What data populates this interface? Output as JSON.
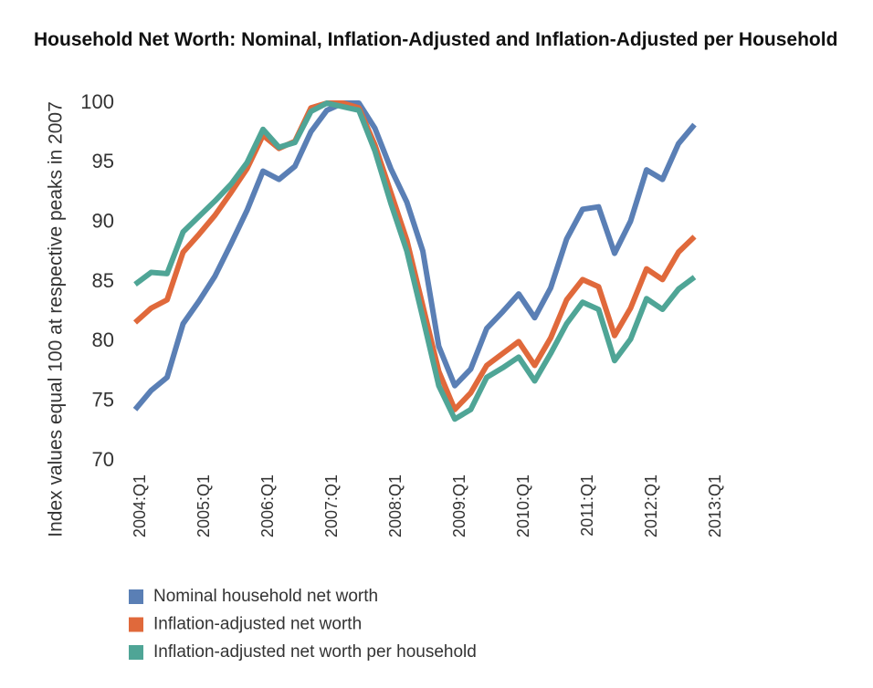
{
  "chart_data": {
    "type": "line",
    "title": "Household Net Worth: Nominal, Inflation-Adjusted and Inflation-Adjusted per Household",
    "y_label": "Index values equal 100 at respective peaks in 2007",
    "categories": [
      "2004:Q1",
      null,
      null,
      null,
      "2005:Q1",
      null,
      null,
      null,
      "2006:Q1",
      null,
      null,
      null,
      "2007:Q1",
      null,
      null,
      null,
      "2008:Q1",
      null,
      null,
      null,
      "2009:Q1",
      null,
      null,
      null,
      "2010:Q1",
      null,
      null,
      null,
      "2011:Q1",
      null,
      null,
      null,
      "2012:Q1",
      null,
      null,
      null,
      "2013:Q1"
    ],
    "series": [
      {
        "name": "Nominal household net worth",
        "color": "#5a7fb5",
        "values": [
          74.3,
          75.9,
          77.0,
          81.5,
          83.4,
          85.5,
          88.2,
          91.0,
          94.3,
          93.6,
          94.7,
          97.6,
          99.4,
          100,
          100,
          97.9,
          94.5,
          91.7,
          87.6,
          79.6,
          76.3,
          77.7,
          81.1,
          82.5,
          84.0,
          82.0,
          84.5,
          88.6,
          91.1,
          91.3,
          87.4,
          90.1,
          94.4,
          93.6,
          96.6,
          98.2,
          null
        ]
      },
      {
        "name": "Inflation-adjusted net worth",
        "color": "#e0693b",
        "values": [
          81.6,
          82.8,
          83.5,
          87.5,
          89.0,
          90.6,
          92.5,
          94.5,
          97.3,
          96.2,
          96.8,
          99.6,
          100,
          100,
          99.6,
          96.5,
          92.5,
          88.5,
          83.0,
          77.5,
          74.3,
          75.7,
          78.0,
          79.0,
          80.0,
          78.0,
          80.3,
          83.5,
          85.2,
          84.6,
          80.5,
          82.8,
          86.1,
          85.2,
          87.5,
          88.8,
          null
        ]
      },
      {
        "name": "Inflation-adjusted net worth per household",
        "color": "#4fa596",
        "values": [
          84.8,
          85.8,
          85.7,
          89.2,
          90.5,
          91.8,
          93.2,
          95.0,
          97.8,
          96.3,
          96.7,
          99.3,
          100,
          99.7,
          99.4,
          96.0,
          91.6,
          87.6,
          82.0,
          76.3,
          73.5,
          74.3,
          77.0,
          77.8,
          78.7,
          76.7,
          79.0,
          81.5,
          83.3,
          82.7,
          78.4,
          80.2,
          83.6,
          82.7,
          84.4,
          85.4,
          null
        ]
      }
    ],
    "ylim": [
      70,
      100
    ],
    "yticks": [
      70,
      75,
      80,
      85,
      90,
      95,
      100
    ],
    "grid": false,
    "legend": "bottom"
  }
}
